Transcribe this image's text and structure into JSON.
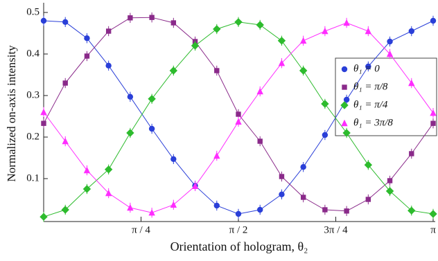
{
  "chart_data": {
    "type": "line",
    "xlabel": "Orientation of hologram, θ₂",
    "ylabel": "Normalized on-axis intensity",
    "x": [
      0,
      0.1745,
      0.3491,
      0.5236,
      0.6981,
      0.8727,
      1.0472,
      1.2217,
      1.3963,
      1.5708,
      1.7453,
      1.9199,
      2.0944,
      2.2689,
      2.4435,
      2.618,
      2.7925,
      2.9671,
      3.1416
    ],
    "xlim": [
      0,
      3.1416
    ],
    "xticks": [
      {
        "value": 0.7854,
        "label": "π / 4"
      },
      {
        "value": 1.5708,
        "label": "π / 2"
      },
      {
        "value": 2.3562,
        "label": "3π / 4"
      },
      {
        "value": 3.1416,
        "label": "π"
      }
    ],
    "ylim": [
      0,
      0.52
    ],
    "yticks": [
      0.1,
      0.2,
      0.3,
      0.4,
      0.5
    ],
    "legend": "right",
    "series": [
      {
        "name": "θ₁ = 0",
        "color": "#2a3fd8",
        "marker": "circle",
        "error": 0.012,
        "values": [
          0.48,
          0.477,
          0.438,
          0.372,
          0.297,
          0.22,
          0.147,
          0.083,
          0.035,
          0.015,
          0.025,
          0.062,
          0.128,
          0.205,
          0.29,
          0.37,
          0.43,
          0.455,
          0.48
        ]
      },
      {
        "name": "θ₁ = π/8",
        "color": "#8a2a8a",
        "marker": "square",
        "error": 0.012,
        "values": [
          0.233,
          0.33,
          0.395,
          0.455,
          0.487,
          0.488,
          0.475,
          0.43,
          0.36,
          0.255,
          0.19,
          0.105,
          0.055,
          0.025,
          0.022,
          0.05,
          0.095,
          0.16,
          0.233
        ]
      },
      {
        "name": "θ₁ = π/4",
        "color": "#2dbb2d",
        "marker": "diamond",
        "error": 0.012,
        "values": [
          0.008,
          0.025,
          0.075,
          0.122,
          0.21,
          0.292,
          0.36,
          0.42,
          0.46,
          0.477,
          0.47,
          0.432,
          0.36,
          0.28,
          0.21,
          0.133,
          0.07,
          0.023,
          0.015
        ]
      },
      {
        "name": "θ₁ = 3π/8",
        "color": "#ff2dff",
        "marker": "triangle",
        "error": 0.012,
        "values": [
          0.26,
          0.19,
          0.12,
          0.065,
          0.03,
          0.018,
          0.037,
          0.082,
          0.155,
          0.237,
          0.31,
          0.378,
          0.432,
          0.455,
          0.475,
          0.455,
          0.4,
          0.33,
          0.258
        ]
      }
    ]
  }
}
